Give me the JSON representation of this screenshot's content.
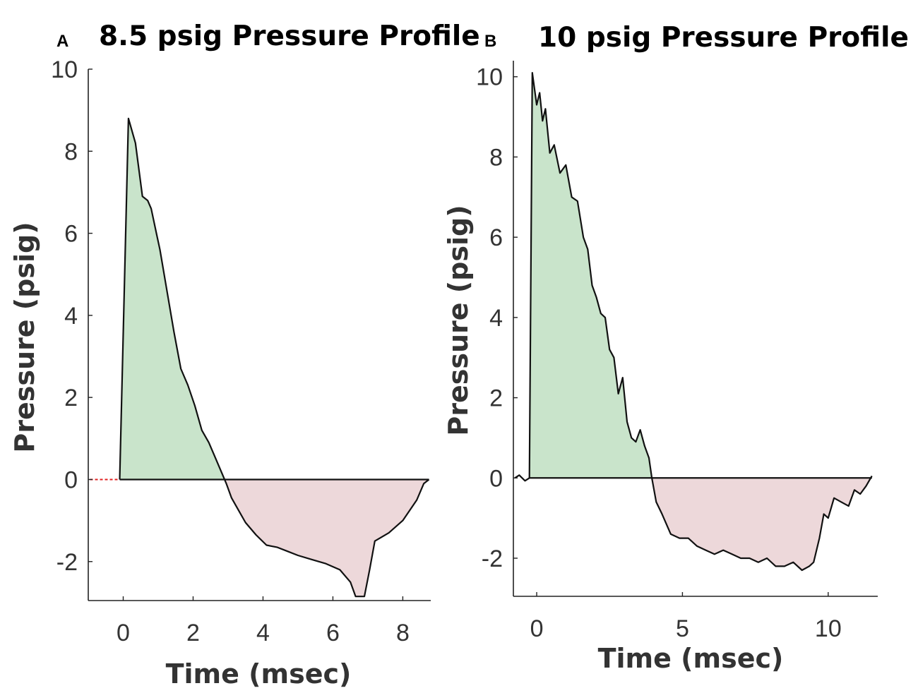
{
  "figure": {
    "panels": [
      "A",
      "B"
    ]
  },
  "colors": {
    "positive_fill": "#c9e4cb",
    "negative_fill": "#edd8da",
    "line": "#111111",
    "baseline_red": "#e02020"
  },
  "chart_data": [
    {
      "type": "area",
      "panel": "A",
      "title": "8.5 psig Pressure Profile",
      "xlabel": "Time (msec)",
      "ylabel": "Pressure (psig)",
      "xlim": [
        -1,
        8.8
      ],
      "ylim": [
        -2.95,
        10
      ],
      "xticks": [
        0,
        2,
        4,
        6,
        8
      ],
      "yticks": [
        -2,
        0,
        2,
        4,
        6,
        8,
        10
      ],
      "pre_baseline": {
        "x": [
          -0.95,
          -0.1
        ],
        "y": [
          0,
          0
        ]
      },
      "series": [
        {
          "name": "pressure",
          "x": [
            -0.1,
            0.15,
            0.35,
            0.55,
            0.7,
            0.8,
            0.95,
            1.05,
            1.25,
            1.45,
            1.65,
            1.85,
            2.05,
            2.25,
            2.45,
            2.6,
            2.8,
            2.95,
            3.1,
            3.3,
            3.5,
            3.8,
            4.1,
            4.4,
            4.7,
            5.0,
            5.4,
            5.8,
            6.2,
            6.5,
            6.65,
            6.9,
            7.05,
            7.2,
            7.6,
            8.0,
            8.4,
            8.6,
            8.75
          ],
          "y": [
            0,
            8.8,
            8.2,
            6.9,
            6.8,
            6.6,
            6.0,
            5.6,
            4.6,
            3.6,
            2.7,
            2.3,
            1.8,
            1.2,
            0.9,
            0.6,
            0.2,
            -0.1,
            -0.45,
            -0.75,
            -1.05,
            -1.35,
            -1.6,
            -1.65,
            -1.75,
            -1.85,
            -1.95,
            -2.05,
            -2.2,
            -2.5,
            -2.85,
            -2.85,
            -2.2,
            -1.5,
            -1.3,
            -1.0,
            -0.5,
            -0.1,
            0
          ]
        }
      ]
    },
    {
      "type": "area",
      "panel": "B",
      "title": "10 psig Pressure Profile",
      "xlabel": "Time (msec)",
      "ylabel": "Pressure (psig)",
      "xlim": [
        -0.8,
        11.7
      ],
      "ylim": [
        -2.95,
        10.4
      ],
      "xticks": [
        0,
        5,
        10
      ],
      "yticks": [
        -2,
        0,
        2,
        4,
        6,
        8,
        10
      ],
      "pre_baseline": {
        "x": [
          -0.75,
          -0.6,
          -0.5,
          -0.4,
          -0.25
        ],
        "y": [
          0,
          0.07,
          0,
          -0.07,
          0
        ]
      },
      "series": [
        {
          "name": "pressure",
          "x": [
            -0.25,
            -0.15,
            0.0,
            0.1,
            0.2,
            0.3,
            0.45,
            0.6,
            0.8,
            1.0,
            1.2,
            1.4,
            1.6,
            1.75,
            1.9,
            2.05,
            2.2,
            2.35,
            2.5,
            2.65,
            2.8,
            2.95,
            3.1,
            3.25,
            3.4,
            3.55,
            3.7,
            3.85,
            3.95,
            4.1,
            4.3,
            4.6,
            4.9,
            5.2,
            5.5,
            5.8,
            6.1,
            6.4,
            6.7,
            7.0,
            7.3,
            7.6,
            7.9,
            8.2,
            8.5,
            8.8,
            9.1,
            9.35,
            9.5,
            9.7,
            9.85,
            10.0,
            10.2,
            10.45,
            10.7,
            10.9,
            11.1,
            11.3,
            11.5
          ],
          "y": [
            0,
            10.1,
            9.3,
            9.6,
            8.9,
            9.2,
            8.1,
            8.3,
            7.6,
            7.8,
            7.0,
            6.9,
            6.0,
            5.7,
            4.8,
            4.5,
            4.1,
            4.0,
            3.2,
            3.0,
            2.1,
            2.5,
            1.4,
            1.0,
            0.9,
            1.2,
            0.8,
            0.5,
            0.0,
            -0.6,
            -0.9,
            -1.4,
            -1.5,
            -1.5,
            -1.7,
            -1.8,
            -1.9,
            -1.8,
            -1.9,
            -2.0,
            -2.0,
            -2.1,
            -2.0,
            -2.2,
            -2.2,
            -2.1,
            -2.3,
            -2.2,
            -2.1,
            -1.5,
            -0.9,
            -1.0,
            -0.5,
            -0.6,
            -0.7,
            -0.3,
            -0.4,
            -0.2,
            0.05
          ]
        }
      ]
    }
  ]
}
